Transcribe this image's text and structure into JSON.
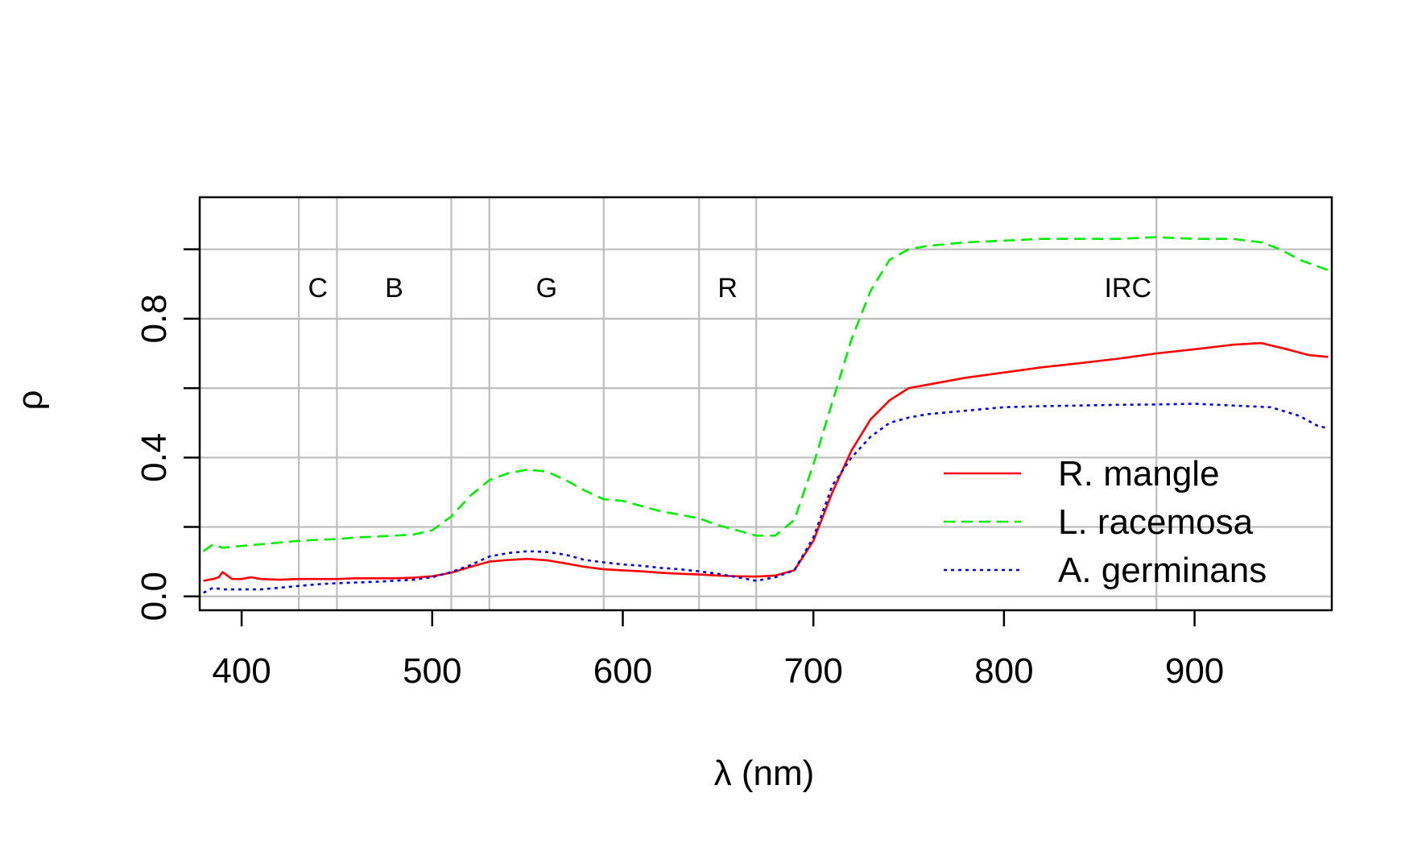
{
  "chart_data": {
    "type": "line",
    "title": "",
    "xlabel": "λ (nm)",
    "ylabel": "ρ",
    "xlim": [
      378,
      972
    ],
    "ylim": [
      -0.04,
      1.15
    ],
    "x_ticks": [
      {
        "value": 400,
        "label": "400"
      },
      {
        "value": 500,
        "label": "500"
      },
      {
        "value": 600,
        "label": "600"
      },
      {
        "value": 700,
        "label": "700"
      },
      {
        "value": 800,
        "label": "800"
      },
      {
        "value": 900,
        "label": "900"
      }
    ],
    "y_ticks": [
      {
        "value": 0.0,
        "label": "0.0"
      },
      {
        "value": 0.2,
        "label": ""
      },
      {
        "value": 0.4,
        "label": "0.4"
      },
      {
        "value": 0.6,
        "label": ""
      },
      {
        "value": 0.8,
        "label": "0.8"
      },
      {
        "value": 1.0,
        "label": ""
      }
    ],
    "grid": true,
    "gridline_x": [
      430,
      450,
      510,
      530,
      590,
      640,
      670,
      880
    ],
    "gridline_y": [
      0.0,
      0.2,
      0.4,
      0.6,
      0.8,
      1.0
    ],
    "band_labels": [
      {
        "label": "C",
        "x": 440,
        "y": 0.89
      },
      {
        "label": "B",
        "x": 480,
        "y": 0.89
      },
      {
        "label": "G",
        "x": 560,
        "y": 0.89
      },
      {
        "label": "R",
        "x": 655,
        "y": 0.89
      },
      {
        "label": "IRC",
        "x": 865,
        "y": 0.89
      }
    ],
    "legend_position": "bottom-right",
    "series": [
      {
        "name": "R. mangle",
        "color": "#ff0000",
        "dash": "solid",
        "points": [
          [
            380,
            0.045
          ],
          [
            385,
            0.05
          ],
          [
            388,
            0.055
          ],
          [
            390,
            0.07
          ],
          [
            395,
            0.05
          ],
          [
            400,
            0.05
          ],
          [
            405,
            0.055
          ],
          [
            410,
            0.05
          ],
          [
            420,
            0.048
          ],
          [
            430,
            0.05
          ],
          [
            440,
            0.05
          ],
          [
            450,
            0.05
          ],
          [
            460,
            0.052
          ],
          [
            470,
            0.052
          ],
          [
            480,
            0.052
          ],
          [
            490,
            0.054
          ],
          [
            500,
            0.058
          ],
          [
            510,
            0.068
          ],
          [
            520,
            0.085
          ],
          [
            530,
            0.1
          ],
          [
            540,
            0.105
          ],
          [
            550,
            0.108
          ],
          [
            560,
            0.104
          ],
          [
            570,
            0.095
          ],
          [
            580,
            0.085
          ],
          [
            590,
            0.078
          ],
          [
            600,
            0.075
          ],
          [
            610,
            0.072
          ],
          [
            620,
            0.068
          ],
          [
            630,
            0.065
          ],
          [
            640,
            0.063
          ],
          [
            650,
            0.06
          ],
          [
            660,
            0.058
          ],
          [
            670,
            0.057
          ],
          [
            680,
            0.06
          ],
          [
            690,
            0.075
          ],
          [
            700,
            0.16
          ],
          [
            710,
            0.3
          ],
          [
            720,
            0.42
          ],
          [
            730,
            0.51
          ],
          [
            740,
            0.565
          ],
          [
            750,
            0.6
          ],
          [
            760,
            0.61
          ],
          [
            780,
            0.63
          ],
          [
            800,
            0.645
          ],
          [
            820,
            0.66
          ],
          [
            840,
            0.672
          ],
          [
            860,
            0.685
          ],
          [
            880,
            0.7
          ],
          [
            900,
            0.712
          ],
          [
            920,
            0.725
          ],
          [
            935,
            0.73
          ],
          [
            950,
            0.71
          ],
          [
            960,
            0.695
          ],
          [
            970,
            0.69
          ]
        ]
      },
      {
        "name": "L. racemosa",
        "color": "#00ee00",
        "dash": "dashed",
        "points": [
          [
            380,
            0.13
          ],
          [
            385,
            0.15
          ],
          [
            390,
            0.14
          ],
          [
            400,
            0.145
          ],
          [
            410,
            0.15
          ],
          [
            420,
            0.155
          ],
          [
            430,
            0.16
          ],
          [
            440,
            0.163
          ],
          [
            450,
            0.165
          ],
          [
            460,
            0.17
          ],
          [
            470,
            0.172
          ],
          [
            480,
            0.175
          ],
          [
            490,
            0.178
          ],
          [
            500,
            0.19
          ],
          [
            510,
            0.23
          ],
          [
            520,
            0.29
          ],
          [
            530,
            0.335
          ],
          [
            540,
            0.355
          ],
          [
            550,
            0.365
          ],
          [
            560,
            0.36
          ],
          [
            570,
            0.335
          ],
          [
            580,
            0.305
          ],
          [
            590,
            0.28
          ],
          [
            600,
            0.275
          ],
          [
            610,
            0.26
          ],
          [
            620,
            0.245
          ],
          [
            630,
            0.235
          ],
          [
            640,
            0.225
          ],
          [
            650,
            0.205
          ],
          [
            660,
            0.19
          ],
          [
            670,
            0.175
          ],
          [
            680,
            0.175
          ],
          [
            690,
            0.22
          ],
          [
            700,
            0.38
          ],
          [
            710,
            0.56
          ],
          [
            720,
            0.74
          ],
          [
            730,
            0.88
          ],
          [
            740,
            0.97
          ],
          [
            750,
            1.0
          ],
          [
            760,
            1.01
          ],
          [
            780,
            1.02
          ],
          [
            800,
            1.025
          ],
          [
            820,
            1.03
          ],
          [
            840,
            1.03
          ],
          [
            860,
            1.03
          ],
          [
            880,
            1.035
          ],
          [
            900,
            1.03
          ],
          [
            920,
            1.03
          ],
          [
            935,
            1.02
          ],
          [
            945,
            1.0
          ],
          [
            955,
            0.97
          ],
          [
            965,
            0.95
          ],
          [
            970,
            0.94
          ]
        ]
      },
      {
        "name": "A. germinans",
        "color": "#0000ee",
        "dash": "dotted",
        "points": [
          [
            380,
            0.01
          ],
          [
            385,
            0.025
          ],
          [
            390,
            0.02
          ],
          [
            400,
            0.02
          ],
          [
            410,
            0.02
          ],
          [
            420,
            0.025
          ],
          [
            430,
            0.03
          ],
          [
            440,
            0.035
          ],
          [
            450,
            0.038
          ],
          [
            460,
            0.04
          ],
          [
            470,
            0.042
          ],
          [
            480,
            0.045
          ],
          [
            490,
            0.048
          ],
          [
            500,
            0.055
          ],
          [
            510,
            0.07
          ],
          [
            520,
            0.09
          ],
          [
            530,
            0.115
          ],
          [
            540,
            0.125
          ],
          [
            550,
            0.13
          ],
          [
            560,
            0.128
          ],
          [
            570,
            0.12
          ],
          [
            580,
            0.105
          ],
          [
            590,
            0.098
          ],
          [
            600,
            0.092
          ],
          [
            610,
            0.088
          ],
          [
            620,
            0.082
          ],
          [
            630,
            0.078
          ],
          [
            640,
            0.072
          ],
          [
            650,
            0.065
          ],
          [
            660,
            0.055
          ],
          [
            670,
            0.045
          ],
          [
            680,
            0.055
          ],
          [
            690,
            0.075
          ],
          [
            700,
            0.17
          ],
          [
            710,
            0.32
          ],
          [
            720,
            0.4
          ],
          [
            730,
            0.46
          ],
          [
            740,
            0.5
          ],
          [
            750,
            0.515
          ],
          [
            760,
            0.525
          ],
          [
            780,
            0.535
          ],
          [
            800,
            0.545
          ],
          [
            820,
            0.548
          ],
          [
            840,
            0.55
          ],
          [
            860,
            0.552
          ],
          [
            880,
            0.553
          ],
          [
            900,
            0.555
          ],
          [
            920,
            0.55
          ],
          [
            940,
            0.545
          ],
          [
            955,
            0.52
          ],
          [
            965,
            0.49
          ],
          [
            970,
            0.485
          ]
        ]
      }
    ]
  }
}
